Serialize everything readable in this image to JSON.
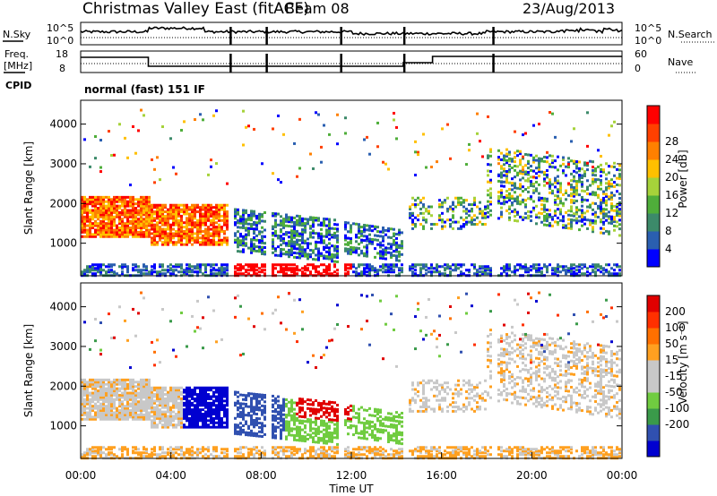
{
  "header": {
    "title": "Christmas Valley East (fitACF)",
    "beam": "Beam 08",
    "date": "23/Aug/2013"
  },
  "nsky_panel": {
    "left_label": "N.Sky",
    "right_label": "N.Search",
    "left_ticks": [
      "10^5",
      "10^0"
    ],
    "right_ticks": [
      "10^5",
      "10^0"
    ]
  },
  "freq_panel": {
    "left_label": "Freq.",
    "left_unit": "[MHz]",
    "right_label": "Nave",
    "left_ticks": [
      "18",
      "8"
    ],
    "right_ticks": [
      "60",
      "0"
    ]
  },
  "cpid": {
    "label": "CPID",
    "value": "normal (fast) 151 IF"
  },
  "chart_data": [
    {
      "type": "heatmap",
      "name": "power",
      "ylabel": "Slant Range [km]",
      "yticks": [
        1000,
        2000,
        3000,
        4000
      ],
      "ylim": [
        180,
        4600
      ],
      "colorbar": {
        "label": "Power [dB]",
        "ticks": [
          "4",
          "8",
          "12",
          "16",
          "20",
          "24",
          "28"
        ],
        "colors": [
          "#0000ff",
          "#2a5fb0",
          "#3c8a6a",
          "#4fae3a",
          "#a6d23a",
          "#ffc000",
          "#ff8000",
          "#ff4000",
          "#ff0000"
        ]
      }
    },
    {
      "type": "heatmap",
      "name": "velocity",
      "xlabel": "Time UT",
      "ylabel": "Slant Range [km]",
      "yticks": [
        1000,
        2000,
        3000,
        4000
      ],
      "ylim": [
        180,
        4600
      ],
      "xticks": [
        "00:00",
        "04:00",
        "08:00",
        "12:00",
        "16:00",
        "20:00",
        "00:00"
      ],
      "colorbar": {
        "label": "Velocity [m s⁻¹]",
        "ticks": [
          "200",
          "100",
          "50",
          "15",
          "-15",
          "-50",
          "-100",
          "-200"
        ],
        "colors": [
          "#0000d0",
          "#3050b0",
          "#3a9a4a",
          "#70cc40",
          "#c8c8c8",
          "#c8c8c8",
          "#ffa020",
          "#ff7000",
          "#ff3000",
          "#e00000"
        ]
      }
    }
  ]
}
